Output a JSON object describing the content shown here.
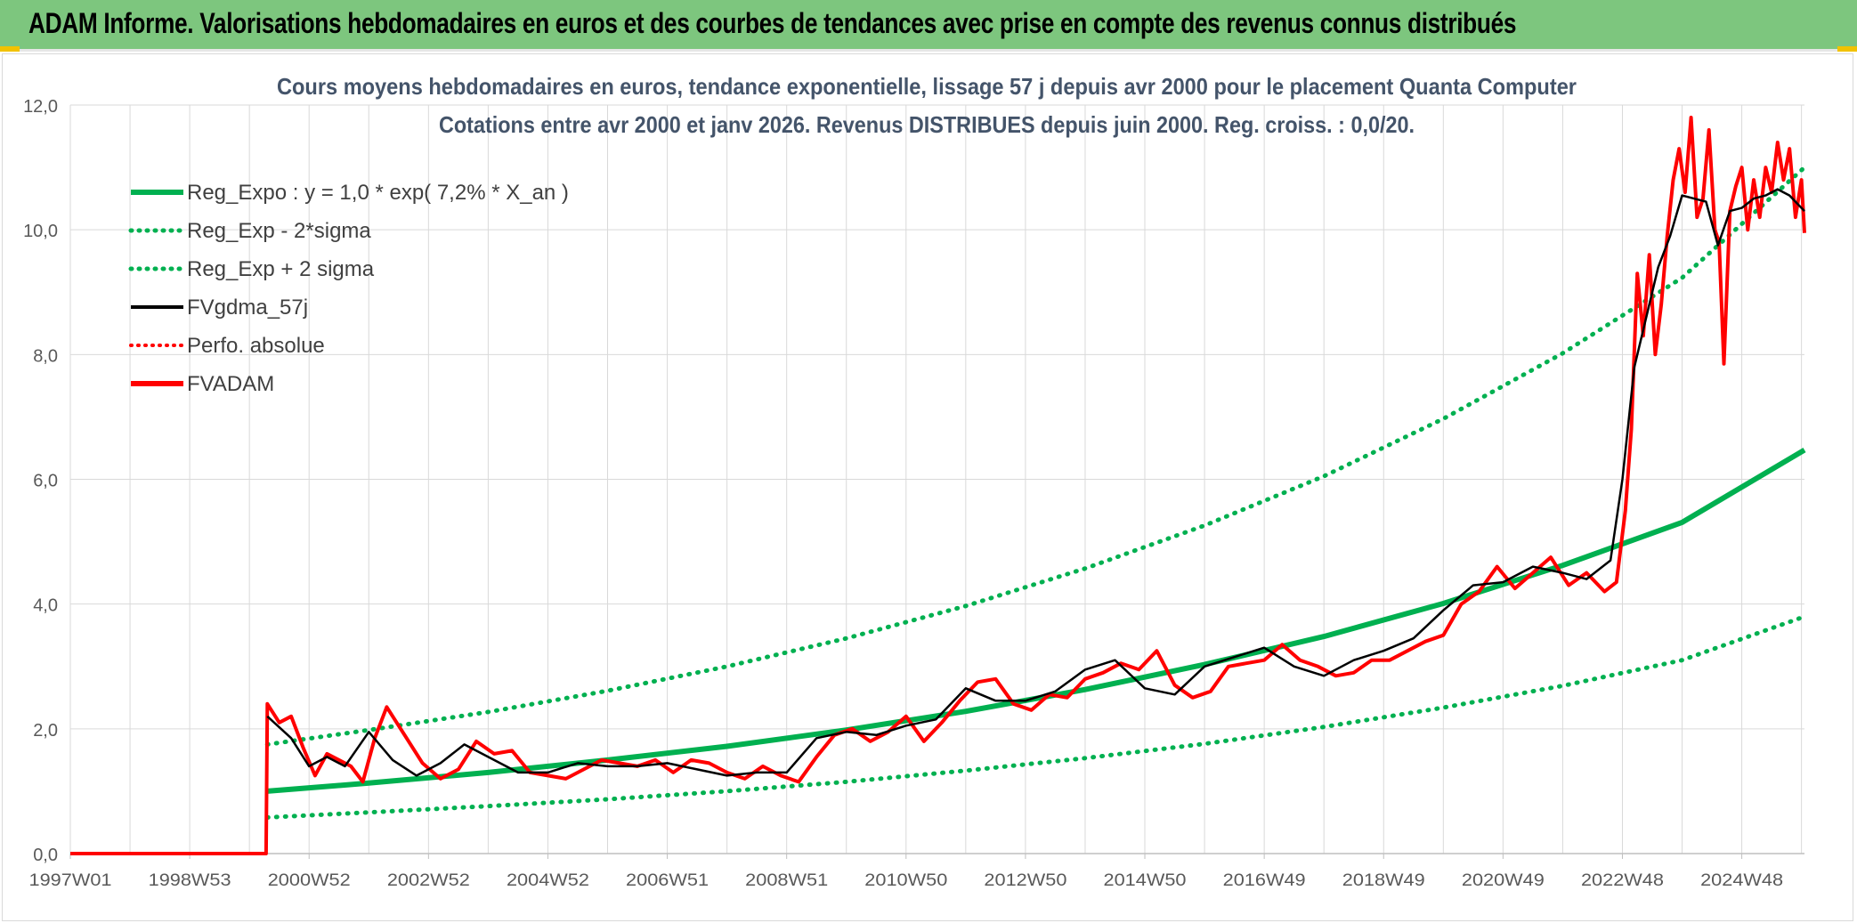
{
  "header": {
    "title": "ADAM Informe. Valorisations hebdomadaires en euros et des courbes de tendances avec prise en compte des revenus connus distribués"
  },
  "colors": {
    "banner": "#7dc67e",
    "reg_expo": "#00b050",
    "reg_band": "#00b050",
    "fvgdma": "#000000",
    "perfo": "#ff0000",
    "fvadam": "#ff0000",
    "title": "#44546a",
    "grid": "#d9d9d9"
  },
  "chart_data": {
    "type": "line",
    "title": "Cours moyens hebdomadaires en euros, tendance exponentielle, lissage 57 j depuis avr 2000 pour le placement Quanta Computer",
    "subtitle": "Cotations entre avr 2000 et janv 2026. Revenus DISTRIBUES depuis juin 2000. Reg. croiss. : 0,0/20.",
    "x_range": [
      "1997W01",
      "2026W04"
    ],
    "x_ticks": [
      "1997W01",
      "1998W53",
      "2000W52",
      "2002W52",
      "2004W52",
      "2006W51",
      "2008W51",
      "2010W50",
      "2012W50",
      "2014W50",
      "2016W49",
      "2018W49",
      "2020W49",
      "2022W48",
      "2024W48"
    ],
    "ylim": [
      0,
      12
    ],
    "y_ticks": [
      "0,0",
      "2,0",
      "4,0",
      "6,0",
      "8,0",
      "10,0",
      "12,0"
    ],
    "grid": true,
    "legend_position": "top-left",
    "legend": [
      {
        "name": "Reg_Expo : y = 1,0 * exp( 7,2% *  X_an )",
        "style": "solid-green"
      },
      {
        "name": "Reg_Exp - 2*sigma",
        "style": "dotted-green"
      },
      {
        "name": "Reg_Exp + 2 sigma",
        "style": "dotted-green"
      },
      {
        "name": "FVgdma_57j",
        "style": "solid-black"
      },
      {
        "name": "Perfo. absolue",
        "style": "dotted-red"
      },
      {
        "name": "FVADAM",
        "style": "solid-red"
      }
    ],
    "series": [
      {
        "name": "Reg_Expo : y = 1,0 * exp( 7,2% *  X_an )",
        "key": "reg",
        "x": [
          2000.3,
          2002.0,
          2004.0,
          2006.0,
          2008.0,
          2010.0,
          2012.0,
          2014.0,
          2016.0,
          2018.0,
          2020.0,
          2022.0,
          2024.0,
          2026.05
        ],
        "values": [
          1.0,
          1.13,
          1.3,
          1.5,
          1.72,
          1.98,
          2.28,
          2.63,
          3.03,
          3.48,
          4.01,
          4.62,
          5.31,
          6.47
        ]
      },
      {
        "name": "Reg_Exp - 2*sigma",
        "key": "low",
        "x": [
          2000.3,
          2002.0,
          2004.0,
          2006.0,
          2008.0,
          2010.0,
          2012.0,
          2014.0,
          2016.0,
          2018.0,
          2020.0,
          2022.0,
          2024.0,
          2026.05
        ],
        "values": [
          0.58,
          0.66,
          0.76,
          0.87,
          1.0,
          1.15,
          1.33,
          1.53,
          1.76,
          2.03,
          2.34,
          2.69,
          3.1,
          3.8
        ]
      },
      {
        "name": "Reg_Exp + 2 sigma",
        "key": "high",
        "x": [
          2000.3,
          2002.0,
          2004.0,
          2006.0,
          2008.0,
          2010.0,
          2012.0,
          2014.0,
          2016.0,
          2018.0,
          2020.0,
          2022.0,
          2024.0,
          2026.05
        ],
        "values": [
          1.75,
          1.98,
          2.27,
          2.61,
          3.0,
          3.45,
          3.97,
          4.57,
          5.26,
          6.05,
          6.97,
          8.02,
          9.23,
          11.0
        ]
      },
      {
        "name": "FVgdma_57j",
        "key": "gdma",
        "x": [
          2000.3,
          2000.7,
          2001.0,
          2001.3,
          2001.6,
          2002.0,
          2002.4,
          2002.8,
          2003.2,
          2003.6,
          2004.0,
          2004.5,
          2005.0,
          2005.5,
          2006.0,
          2006.5,
          2007.0,
          2007.5,
          2008.0,
          2008.5,
          2009.0,
          2009.5,
          2010.0,
          2010.5,
          2011.0,
          2011.5,
          2012.0,
          2012.5,
          2013.0,
          2013.5,
          2014.0,
          2014.5,
          2015.0,
          2015.5,
          2016.0,
          2016.5,
          2017.0,
          2017.5,
          2018.0,
          2018.5,
          2019.0,
          2019.5,
          2020.0,
          2020.5,
          2021.0,
          2021.5,
          2022.0,
          2022.4,
          2022.8,
          2023.0,
          2023.2,
          2023.4,
          2023.6,
          2023.8,
          2024.0,
          2024.2,
          2024.4,
          2024.6,
          2024.8,
          2025.0,
          2025.2,
          2025.4,
          2025.6,
          2025.8,
          2026.05
        ],
        "values": [
          2.2,
          1.85,
          1.4,
          1.55,
          1.4,
          1.95,
          1.5,
          1.25,
          1.45,
          1.75,
          1.55,
          1.3,
          1.3,
          1.45,
          1.4,
          1.4,
          1.45,
          1.35,
          1.25,
          1.3,
          1.3,
          1.85,
          1.95,
          1.9,
          2.05,
          2.15,
          2.65,
          2.45,
          2.45,
          2.6,
          2.95,
          3.1,
          2.65,
          2.55,
          3.0,
          3.15,
          3.3,
          3.0,
          2.85,
          3.1,
          3.25,
          3.45,
          3.9,
          4.3,
          4.35,
          4.6,
          4.5,
          4.4,
          4.7,
          6.0,
          7.8,
          8.6,
          9.4,
          9.9,
          10.55,
          10.5,
          10.45,
          9.75,
          10.3,
          10.35,
          10.5,
          10.55,
          10.65,
          10.55,
          10.3
        ]
      },
      {
        "name": "FVADAM",
        "key": "fvadam",
        "x": [
          1997.0,
          2000.28,
          2000.3,
          2000.5,
          2000.7,
          2000.9,
          2001.1,
          2001.3,
          2001.5,
          2001.7,
          2001.9,
          2002.1,
          2002.3,
          2002.6,
          2002.9,
          2003.2,
          2003.5,
          2003.8,
          2004.1,
          2004.4,
          2004.7,
          2005.0,
          2005.3,
          2005.6,
          2005.9,
          2006.2,
          2006.5,
          2006.8,
          2007.1,
          2007.4,
          2007.7,
          2008.0,
          2008.3,
          2008.6,
          2008.9,
          2009.2,
          2009.5,
          2009.8,
          2010.1,
          2010.4,
          2010.7,
          2011.0,
          2011.3,
          2011.6,
          2011.9,
          2012.2,
          2012.5,
          2012.8,
          2013.1,
          2013.4,
          2013.7,
          2014.0,
          2014.3,
          2014.6,
          2014.9,
          2015.2,
          2015.5,
          2015.8,
          2016.1,
          2016.4,
          2016.7,
          2017.0,
          2017.3,
          2017.6,
          2017.9,
          2018.2,
          2018.5,
          2018.8,
          2019.1,
          2019.4,
          2019.7,
          2020.0,
          2020.3,
          2020.6,
          2020.9,
          2021.2,
          2021.5,
          2021.8,
          2022.1,
          2022.4,
          2022.7,
          2022.9,
          2023.05,
          2023.15,
          2023.25,
          2023.35,
          2023.45,
          2023.55,
          2023.65,
          2023.75,
          2023.85,
          2023.95,
          2024.05,
          2024.15,
          2024.25,
          2024.35,
          2024.45,
          2024.55,
          2024.62,
          2024.7,
          2024.8,
          2024.9,
          2025.0,
          2025.1,
          2025.2,
          2025.3,
          2025.4,
          2025.5,
          2025.6,
          2025.7,
          2025.8,
          2025.9,
          2026.0,
          2026.05
        ],
        "values": [
          0.0,
          0.0,
          2.4,
          2.1,
          2.2,
          1.7,
          1.25,
          1.6,
          1.5,
          1.4,
          1.15,
          1.85,
          2.35,
          1.9,
          1.45,
          1.2,
          1.35,
          1.8,
          1.6,
          1.65,
          1.3,
          1.25,
          1.2,
          1.35,
          1.5,
          1.45,
          1.4,
          1.5,
          1.3,
          1.5,
          1.45,
          1.3,
          1.2,
          1.4,
          1.25,
          1.15,
          1.55,
          1.9,
          2.0,
          1.8,
          1.95,
          2.2,
          1.8,
          2.1,
          2.45,
          2.75,
          2.8,
          2.4,
          2.3,
          2.55,
          2.5,
          2.8,
          2.9,
          3.05,
          2.95,
          3.25,
          2.7,
          2.5,
          2.6,
          3.0,
          3.05,
          3.1,
          3.35,
          3.1,
          3.0,
          2.85,
          2.9,
          3.1,
          3.1,
          3.25,
          3.4,
          3.5,
          4.0,
          4.2,
          4.6,
          4.25,
          4.5,
          4.75,
          4.3,
          4.5,
          4.2,
          4.35,
          5.5,
          6.8,
          9.3,
          8.3,
          9.6,
          8.0,
          8.8,
          9.9,
          10.8,
          11.3,
          10.6,
          11.8,
          10.2,
          10.5,
          11.6,
          10.0,
          9.8,
          7.85,
          10.3,
          10.7,
          11.0,
          10.0,
          10.8,
          10.2,
          11.0,
          10.6,
          11.4,
          10.8,
          11.3,
          10.2,
          10.8,
          9.95
        ]
      }
    ]
  }
}
